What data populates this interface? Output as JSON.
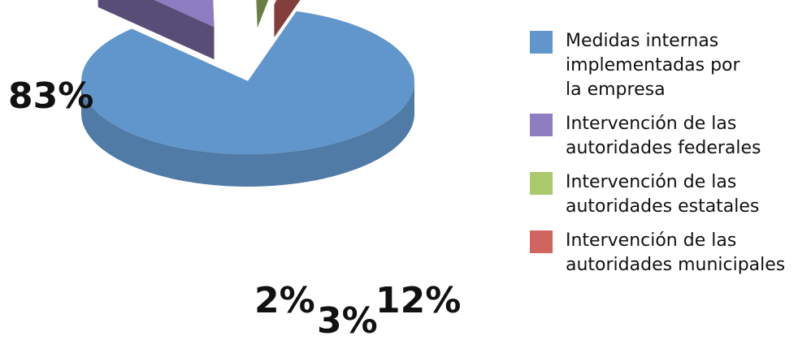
{
  "chart_data": {
    "type": "pie",
    "style": "3d-exploded",
    "slices": [
      {
        "label": "Medidas internas implementadas por la empresa",
        "value": 83,
        "value_label": "83%",
        "color": "#6196cc"
      },
      {
        "label": "Intervención de las autoridades federales",
        "value": 12,
        "value_label": "12%",
        "color": "#8e7cc0"
      },
      {
        "label": "Intervención de las autoridades estatales",
        "value": 3,
        "value_label": "3%",
        "color": "#a9c96a"
      },
      {
        "label": "Intervención de las autoridades municipales",
        "value": 2,
        "value_label": "2%",
        "color": "#d0645e"
      }
    ],
    "legend_position": "right"
  },
  "legend": {
    "items": [
      {
        "text": "Medidas internas\nimplementadas por\nla empresa",
        "color": "#6196cc"
      },
      {
        "text": "Intervención de las\nautoridades federales",
        "color": "#8e7cc0"
      },
      {
        "text": "Intervención de las\nautoridades estatales",
        "color": "#a9c96a"
      },
      {
        "text": "Intervención de las\nautoridades municipales",
        "color": "#d0645e"
      }
    ]
  }
}
